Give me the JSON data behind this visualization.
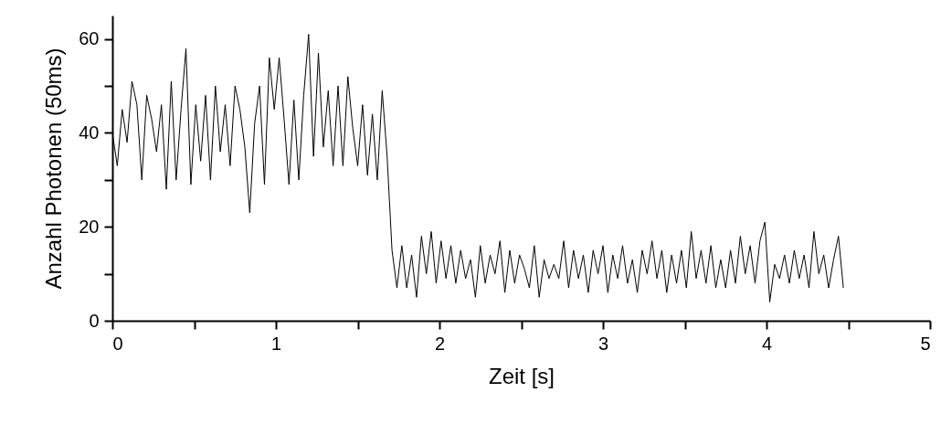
{
  "chart_data": {
    "type": "line",
    "xlabel": "Zeit [s]",
    "ylabel": "Anzahl Photonen (50ms)",
    "x": [
      0,
      0.03,
      0.06,
      0.09,
      0.12,
      0.15,
      0.18,
      0.21,
      0.24,
      0.27,
      0.3,
      0.33,
      0.36,
      0.39,
      0.42,
      0.45,
      0.48,
      0.51,
      0.54,
      0.57,
      0.6,
      0.63,
      0.66,
      0.69,
      0.72,
      0.75,
      0.78,
      0.81,
      0.84,
      0.87,
      0.9,
      0.93,
      0.96,
      0.99,
      1.02,
      1.05,
      1.08,
      1.11,
      1.14,
      1.17,
      1.2,
      1.23,
      1.26,
      1.29,
      1.32,
      1.35,
      1.38,
      1.41,
      1.44,
      1.47,
      1.5,
      1.53,
      1.56,
      1.59,
      1.62,
      1.65,
      1.68,
      1.71,
      1.74,
      1.77,
      1.8,
      1.83,
      1.86,
      1.89,
      1.92,
      1.95,
      1.98,
      2.01,
      2.04,
      2.07,
      2.1,
      2.13,
      2.16,
      2.19,
      2.22,
      2.25,
      2.28,
      2.31,
      2.34,
      2.37,
      2.4,
      2.43,
      2.46,
      2.49,
      2.52,
      2.55,
      2.58,
      2.61,
      2.64,
      2.67,
      2.7,
      2.73,
      2.76,
      2.79,
      2.82,
      2.85,
      2.88,
      2.91,
      2.94,
      2.97,
      3.0,
      3.03,
      3.06,
      3.09,
      3.12,
      3.15,
      3.18,
      3.21,
      3.24,
      3.27,
      3.3,
      3.33,
      3.36,
      3.39,
      3.42,
      3.45,
      3.48,
      3.51,
      3.54,
      3.57,
      3.6,
      3.63,
      3.66,
      3.69,
      3.72,
      3.75,
      3.78,
      3.81,
      3.84,
      3.87,
      3.9,
      3.93,
      3.96,
      3.99,
      4.02,
      4.05,
      4.08,
      4.11,
      4.14,
      4.17,
      4.2,
      4.23,
      4.26,
      4.29,
      4.32,
      4.35,
      4.38,
      4.41,
      4.44,
      4.47
    ],
    "series": [
      {
        "color": "#000000",
        "values": [
          40,
          33,
          45,
          38,
          51,
          46,
          30,
          48,
          43,
          36,
          46,
          28,
          51,
          30,
          45,
          58,
          29,
          46,
          34,
          48,
          30,
          50,
          36,
          46,
          33,
          50,
          45,
          37,
          23,
          42,
          50,
          29,
          56,
          45,
          56,
          43,
          29,
          47,
          30,
          48,
          61,
          35,
          57,
          37,
          49,
          33,
          50,
          33,
          52,
          41,
          33,
          46,
          31,
          44,
          30,
          49,
          35,
          15,
          7,
          16,
          7,
          14,
          5,
          18,
          10,
          19,
          8,
          17,
          9,
          16,
          8,
          15,
          9,
          13,
          5,
          16,
          8,
          14,
          10,
          17,
          6,
          15,
          8,
          14,
          11,
          7,
          16,
          5,
          13,
          9,
          12,
          9,
          17,
          7,
          15,
          9,
          14,
          6,
          15,
          10,
          16,
          6,
          14,
          9,
          16,
          8,
          13,
          6,
          15,
          10,
          17,
          9,
          15,
          6,
          14,
          8,
          15,
          7,
          19,
          9,
          15,
          8,
          16,
          7,
          13,
          7,
          15,
          8,
          18,
          10,
          16,
          8,
          17,
          21,
          4,
          12,
          9,
          14,
          8,
          15,
          9,
          14,
          7,
          19,
          10,
          14,
          7,
          13,
          18,
          7
        ]
      }
    ],
    "xlim": [
      0,
      5
    ],
    "xticks": [
      0,
      {
        "value": 0.5,
        "label": null
      },
      1,
      {
        "value": 1.5,
        "label": null
      },
      2,
      {
        "value": 2.5,
        "label": null
      },
      3,
      {
        "value": 3.5,
        "label": null
      },
      4,
      {
        "value": 4.5,
        "label": null
      },
      5
    ],
    "ylim": [
      0,
      65
    ],
    "yticks": [
      0,
      {
        "value": 10,
        "label": null
      },
      20,
      {
        "value": 30,
        "label": null
      },
      40,
      {
        "value": 50,
        "label": null
      },
      60
    ],
    "grid": false,
    "line_style": "solid"
  }
}
